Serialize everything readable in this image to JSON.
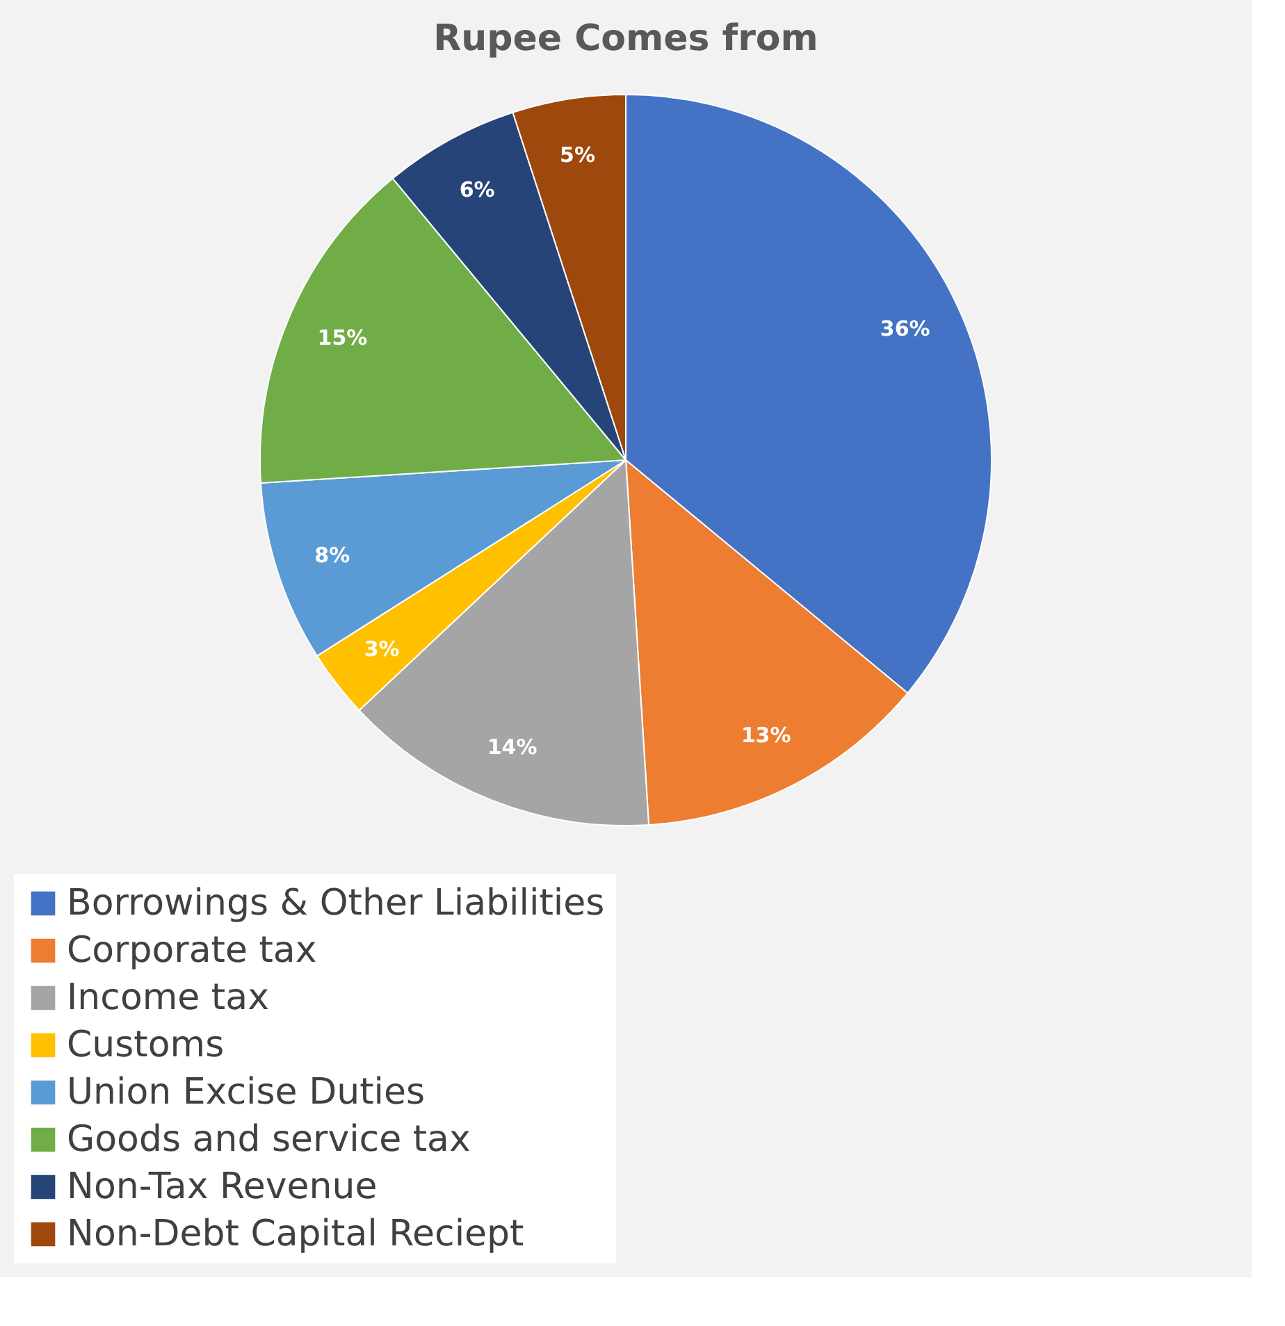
{
  "chart_data": {
    "type": "pie",
    "title": "Rupee Comes from",
    "categories": [
      "Borrowings & Other Liabilities",
      "Corporate tax",
      "Income tax",
      "Customs",
      "Union Excise Duties",
      "Goods and service tax",
      "Non-Tax Revenue",
      "Non-Debt Capital Reciept"
    ],
    "values": [
      36,
      13,
      14,
      3,
      8,
      15,
      6,
      5
    ],
    "value_labels": [
      "36%",
      "13%",
      "14%",
      "3%",
      "8%",
      "15%",
      "6%",
      "5%"
    ],
    "colors": [
      "#4472c4",
      "#ed7d31",
      "#a5a5a5",
      "#ffc000",
      "#5b9bd5",
      "#70ad47",
      "#264478",
      "#9e480e"
    ],
    "legend": "bottom"
  }
}
